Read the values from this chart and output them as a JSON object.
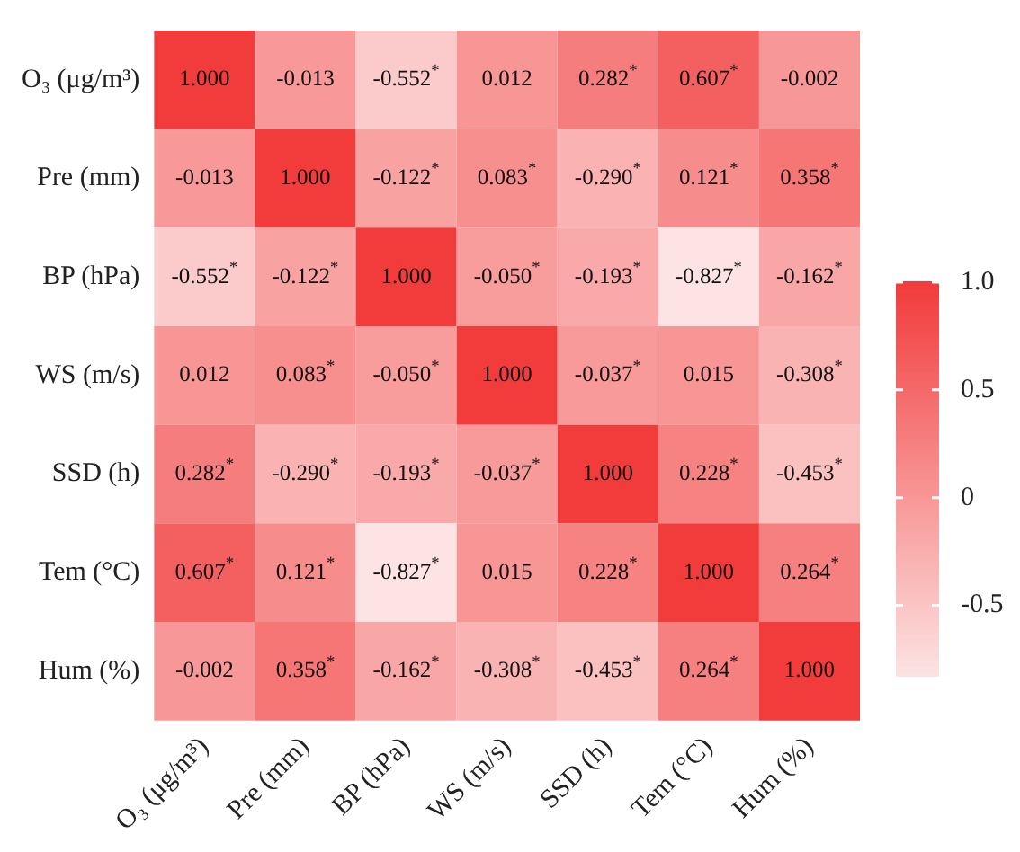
{
  "chart_data": {
    "type": "heatmap",
    "categories": [
      "O₃ (μg/m³)",
      "Pre (mm)",
      "BP (hPa)",
      "WS (m/s)",
      "SSD (h)",
      "Tem (°C)",
      "Hum (%)"
    ],
    "y_categories": [
      "O₃ (μg/m³)",
      "Pre (mm)",
      "BP (hPa)",
      "WS (m/s)",
      "SSD (h)",
      "Tem (°C)",
      "Hum (%)"
    ],
    "cells": [
      [
        1.0,
        -0.013,
        -0.552,
        0.012,
        0.282,
        0.607,
        -0.002
      ],
      [
        -0.013,
        1.0,
        -0.122,
        0.083,
        -0.29,
        0.121,
        0.358
      ],
      [
        -0.552,
        -0.122,
        1.0,
        -0.05,
        -0.193,
        -0.827,
        -0.162
      ],
      [
        0.012,
        0.083,
        -0.05,
        1.0,
        -0.037,
        0.015,
        -0.308
      ],
      [
        0.282,
        -0.29,
        -0.193,
        -0.037,
        1.0,
        0.228,
        -0.453
      ],
      [
        0.607,
        0.121,
        -0.827,
        0.015,
        0.228,
        1.0,
        0.264
      ],
      [
        -0.002,
        0.358,
        -0.162,
        -0.308,
        -0.453,
        0.264,
        1.0
      ]
    ],
    "cell_labels": [
      [
        "1.000",
        "-0.013",
        "-0.552$^{*}$",
        "0.012",
        "0.282$^{*}$",
        "0.607$^{*}$",
        "-0.002"
      ],
      [
        "-0.013",
        "1.000",
        "-0.122$^{*}$",
        "0.083$^{*}$",
        "-0.290$^{*}$",
        "0.121$^{*}$",
        "0.358$^{*}$"
      ],
      [
        "-0.552$^{*}$",
        "-0.122$^{*}$",
        "1.000",
        "-0.050$^{*}$",
        "-0.193$^{*}$",
        "-0.827$^{*}$",
        "-0.162$^{*}$"
      ],
      [
        "0.012",
        "0.083$^{*}$",
        "-0.050$^{*}$",
        "1.000",
        "-0.037$^{*}$",
        "0.015",
        "-0.308$^{*}$"
      ],
      [
        "0.282$^{*}$",
        "-0.290$^{*}$",
        "-0.193$^{*}$",
        "-0.037$^{*}$",
        "1.000",
        "0.228$^{*}$",
        "-0.453$^{*}$"
      ],
      [
        "0.607$^{*}$",
        "0.121$^{*}$",
        "-0.827$^{*}$",
        "0.015",
        "0.228$^{*}$",
        "1.000",
        "0.264$^{*}$"
      ],
      [
        "-0.002",
        "0.358$^{*}$",
        "-0.162$^{*}$",
        "-0.308$^{*}$",
        "-0.453$^{*}$",
        "0.264$^{*}$",
        "1.000"
      ]
    ],
    "clim": [
      -0.827,
      1.0
    ],
    "cticks": [
      {
        "value": -0.5,
        "label": "-0.5"
      },
      {
        "value": 0,
        "label": "0"
      },
      {
        "value": 0.5,
        "label": "0.5"
      },
      {
        "value": 1.0,
        "label": "1.0"
      }
    ]
  }
}
